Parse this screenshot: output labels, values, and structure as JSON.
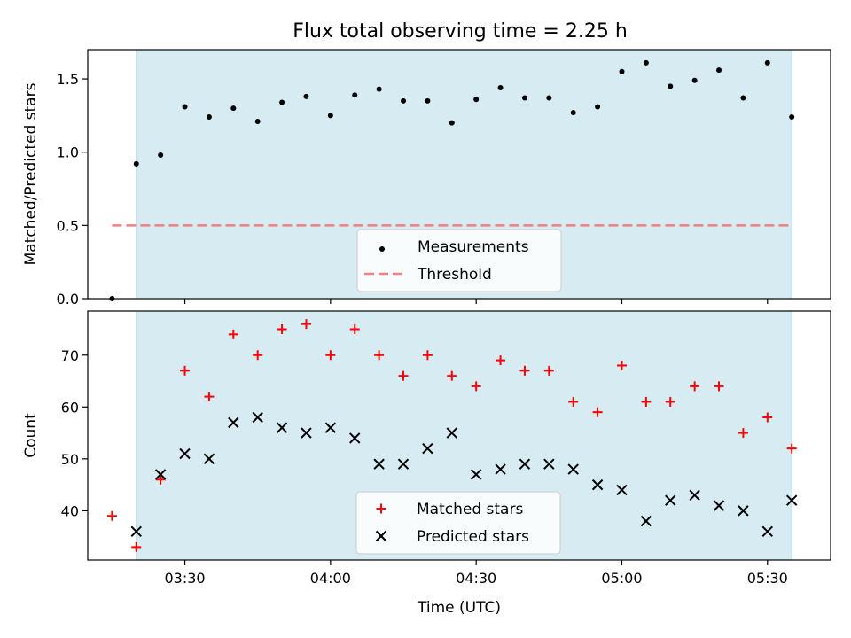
{
  "title": "Flux total observing time = 2.25 h",
  "colors": {
    "shade": "#add8e6",
    "measurement": "#000000",
    "threshold": "#f08080",
    "matched": "#ff0000",
    "predicted": "#000000"
  },
  "chart_data": [
    {
      "type": "scatter",
      "ylabel": "Matched/Predicted stars",
      "xlabel": "",
      "xlim": [
        "03:10",
        "05:43"
      ],
      "ylim": [
        0,
        1.7
      ],
      "yticks": [
        0.0,
        0.5,
        1.0,
        1.5
      ],
      "ytick_labels": [
        "0.0",
        "0.5",
        "1.0",
        "1.5"
      ],
      "shaded_region": [
        "03:20",
        "05:35"
      ],
      "legend_position": "bottom-center",
      "threshold": {
        "name": "Threshold",
        "value": 0.5,
        "x_range": [
          "03:15",
          "05:35"
        ]
      },
      "series": [
        {
          "name": "Measurements",
          "marker": "dot",
          "x": [
            "03:15",
            "03:20",
            "03:25",
            "03:30",
            "03:35",
            "03:40",
            "03:45",
            "03:50",
            "03:55",
            "04:00",
            "04:05",
            "04:10",
            "04:15",
            "04:20",
            "04:25",
            "04:30",
            "04:35",
            "04:40",
            "04:45",
            "04:50",
            "04:55",
            "05:00",
            "05:05",
            "05:10",
            "05:15",
            "05:20",
            "05:25",
            "05:30",
            "05:35"
          ],
          "values": [
            0.0,
            0.92,
            0.98,
            1.31,
            1.24,
            1.3,
            1.21,
            1.34,
            1.38,
            1.25,
            1.39,
            1.43,
            1.35,
            1.35,
            1.2,
            1.36,
            1.44,
            1.37,
            1.37,
            1.27,
            1.31,
            1.55,
            1.61,
            1.45,
            1.49,
            1.56,
            1.37,
            1.61,
            1.24
          ]
        }
      ]
    },
    {
      "type": "scatter",
      "ylabel": "Count",
      "xlabel": "Time (UTC)",
      "xlim": [
        "03:10",
        "05:43"
      ],
      "ylim": [
        30.5,
        78.5
      ],
      "yticks": [
        40,
        50,
        60,
        70
      ],
      "ytick_labels": [
        "40",
        "50",
        "60",
        "70"
      ],
      "xticks": [
        "03:30",
        "04:00",
        "04:30",
        "05:00",
        "05:30"
      ],
      "xtick_labels": [
        "03:30",
        "04:00",
        "04:30",
        "05:00",
        "05:30"
      ],
      "shaded_region": [
        "03:20",
        "05:35"
      ],
      "legend_position": "bottom-center",
      "series": [
        {
          "name": "Matched stars",
          "marker": "plus",
          "x": [
            "03:15",
            "03:20",
            "03:25",
            "03:30",
            "03:35",
            "03:40",
            "03:45",
            "03:50",
            "03:55",
            "04:00",
            "04:05",
            "04:10",
            "04:15",
            "04:20",
            "04:25",
            "04:30",
            "04:35",
            "04:40",
            "04:45",
            "04:50",
            "04:55",
            "05:00",
            "05:05",
            "05:10",
            "05:15",
            "05:20",
            "05:25",
            "05:30",
            "05:35"
          ],
          "values": [
            39,
            33,
            46,
            67,
            62,
            74,
            70,
            75,
            76,
            70,
            75,
            70,
            66,
            70,
            66,
            64,
            69,
            67,
            67,
            61,
            59,
            68,
            61,
            61,
            64,
            64,
            55,
            58,
            52
          ]
        },
        {
          "name": "Predicted stars",
          "marker": "x",
          "x": [
            "03:20",
            "03:25",
            "03:30",
            "03:35",
            "03:40",
            "03:45",
            "03:50",
            "03:55",
            "04:00",
            "04:05",
            "04:10",
            "04:15",
            "04:20",
            "04:25",
            "04:30",
            "04:35",
            "04:40",
            "04:45",
            "04:50",
            "04:55",
            "05:00",
            "05:05",
            "05:10",
            "05:15",
            "05:20",
            "05:25",
            "05:30",
            "05:35"
          ],
          "values": [
            36,
            47,
            51,
            50,
            57,
            58,
            56,
            55,
            56,
            54,
            49,
            49,
            52,
            55,
            47,
            48,
            49,
            49,
            48,
            45,
            44,
            38,
            42,
            43,
            41,
            40,
            36,
            42
          ]
        }
      ]
    }
  ]
}
